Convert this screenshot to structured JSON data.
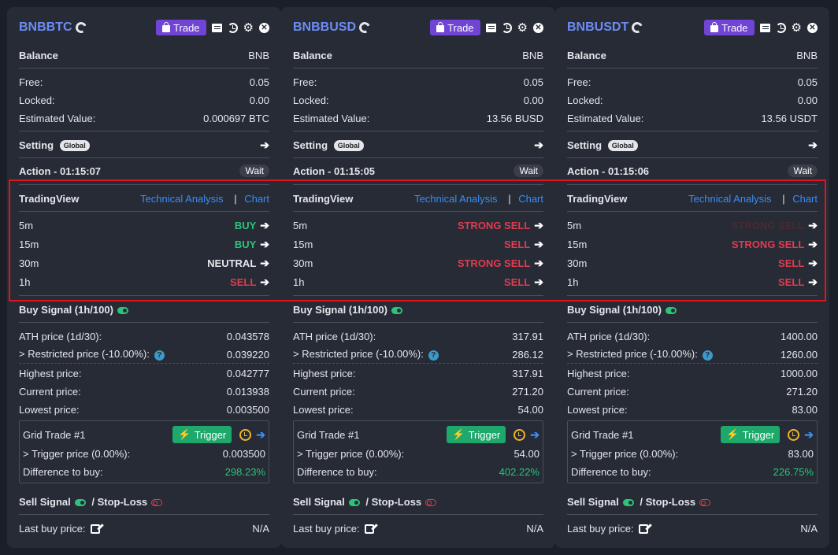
{
  "common": {
    "trade_label": "Trade",
    "balance_label": "Balance",
    "free_label": "Free:",
    "locked_label": "Locked:",
    "estimated_label": "Estimated Value:",
    "setting_label": "Setting",
    "global_badge": "Global",
    "tradingview_label": "TradingView",
    "technical_analysis_link": "Technical Analysis",
    "pipe": "|",
    "chart_link": "Chart",
    "buy_signal_label": "Buy Signal (1h/100)",
    "ath_label": "ATH price (1d/30):",
    "restricted_label": "> Restricted price (-10.00%):",
    "highest_label": "Highest price:",
    "current_label": "Current price:",
    "lowest_label": "Lowest price:",
    "grid_trade_label": "Grid Trade #1",
    "trigger_label": "Trigger",
    "trigger_price_label": "> Trigger price (0.00%):",
    "difference_label": "Difference to buy:",
    "sell_signal_label": "Sell Signal",
    "stop_loss_label": "/ Stop-Loss",
    "last_buy_label": "Last buy price:",
    "wait_label": "Wait",
    "arrow": "➔",
    "colors": {
      "accent": "#6d8cf5",
      "buy": "#2ec27a",
      "sell": "#e03c4f",
      "trade_button": "#7044d4",
      "trigger_button": "#1ea86b"
    }
  },
  "cards": [
    {
      "symbol": "BNBBTC",
      "balance_asset": "BNB",
      "free": "0.05",
      "locked": "0.00",
      "estimated": "0.000697 BTC",
      "action_label": "Action - 01:15:07",
      "tv": [
        {
          "interval": "5m",
          "signal": "BUY",
          "style": "green"
        },
        {
          "interval": "15m",
          "signal": "BUY",
          "style": "green"
        },
        {
          "interval": "30m",
          "signal": "NEUTRAL",
          "style": "neutral"
        },
        {
          "interval": "1h",
          "signal": "SELL",
          "style": "red"
        }
      ],
      "ath": "0.043578",
      "restricted": "0.039220",
      "highest": "0.042777",
      "current": "0.013938",
      "lowest": "0.003500",
      "trigger_price": "0.003500",
      "difference": "298.23%",
      "last_buy": "N/A"
    },
    {
      "symbol": "BNBBUSD",
      "balance_asset": "BNB",
      "free": "0.05",
      "locked": "0.00",
      "estimated": "13.56 BUSD",
      "action_label": "Action - 01:15:05",
      "tv": [
        {
          "interval": "5m",
          "signal": "STRONG SELL",
          "style": "red"
        },
        {
          "interval": "15m",
          "signal": "SELL",
          "style": "red"
        },
        {
          "interval": "30m",
          "signal": "STRONG SELL",
          "style": "red"
        },
        {
          "interval": "1h",
          "signal": "SELL",
          "style": "red"
        }
      ],
      "ath": "317.91",
      "restricted": "286.12",
      "highest": "317.91",
      "current": "271.20",
      "lowest": "54.00",
      "trigger_price": "54.00",
      "difference": "402.22%",
      "last_buy": "N/A"
    },
    {
      "symbol": "BNBUSDT",
      "balance_asset": "BNB",
      "free": "0.05",
      "locked": "0.00",
      "estimated": "13.56 USDT",
      "action_label": "Action - 01:15:06",
      "tv": [
        {
          "interval": "5m",
          "signal": "STRONG SELL",
          "style": "dimred"
        },
        {
          "interval": "15m",
          "signal": "STRONG SELL",
          "style": "red"
        },
        {
          "interval": "30m",
          "signal": "SELL",
          "style": "red"
        },
        {
          "interval": "1h",
          "signal": "SELL",
          "style": "red"
        }
      ],
      "ath": "1400.00",
      "restricted": "1260.00",
      "highest": "1000.00",
      "current": "271.20",
      "lowest": "83.00",
      "trigger_price": "83.00",
      "difference": "226.75%",
      "last_buy": "N/A"
    }
  ]
}
